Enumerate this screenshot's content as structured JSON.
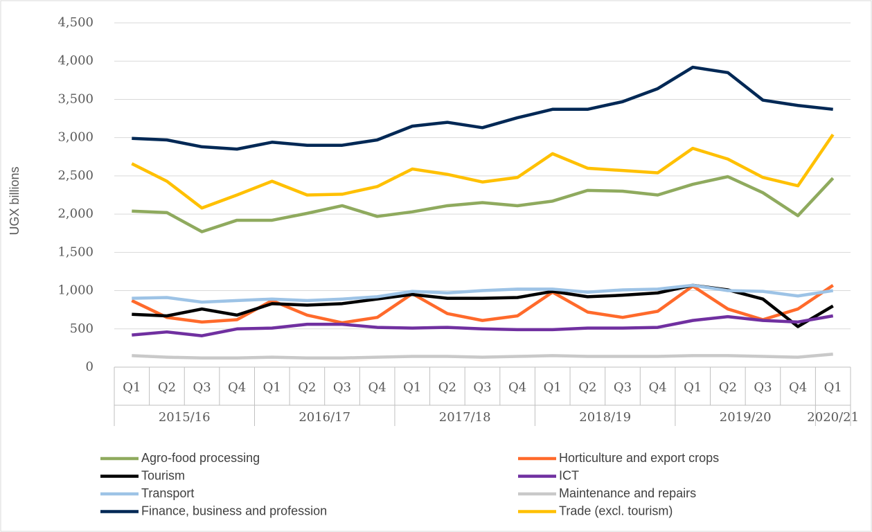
{
  "chart_data": {
    "type": "line",
    "y_label": "UGX billions",
    "category_groups": [
      {
        "label": "2015/16",
        "categories": [
          "Q1",
          "Q2",
          "Q3",
          "Q4"
        ]
      },
      {
        "label": "2016/17",
        "categories": [
          "Q1",
          "Q2",
          "Q3",
          "Q4"
        ]
      },
      {
        "label": "2017/18",
        "categories": [
          "Q1",
          "Q2",
          "Q3",
          "Q4"
        ]
      },
      {
        "label": "2018/19",
        "categories": [
          "Q1",
          "Q2",
          "Q3",
          "Q4"
        ]
      },
      {
        "label": "2019/20",
        "categories": [
          "Q1",
          "Q2",
          "Q3",
          "Q4"
        ]
      },
      {
        "label": "2020/21",
        "categories": [
          "Q1"
        ]
      }
    ],
    "series": [
      {
        "name": "Agro-food processing",
        "color": "#8faa5e",
        "values": [
          2040,
          2020,
          1770,
          1920,
          1920,
          2010,
          2110,
          1970,
          2030,
          2110,
          2150,
          2110,
          2170,
          2310,
          2300,
          2250,
          2390,
          2490,
          2280,
          1980,
          2470
        ]
      },
      {
        "name": "Horticulture and export crops",
        "color": "#ff6a2b",
        "values": [
          870,
          650,
          590,
          620,
          870,
          680,
          580,
          650,
          960,
          700,
          610,
          670,
          980,
          720,
          650,
          730,
          1060,
          760,
          620,
          760,
          1070
        ]
      },
      {
        "name": "Tourism",
        "color": "#000000",
        "values": [
          690,
          670,
          760,
          680,
          830,
          810,
          830,
          890,
          950,
          900,
          900,
          910,
          990,
          920,
          940,
          970,
          1070,
          1010,
          890,
          530,
          800
        ]
      },
      {
        "name": "ICT",
        "color": "#7030a0",
        "values": [
          420,
          460,
          410,
          500,
          510,
          560,
          560,
          520,
          510,
          520,
          500,
          490,
          490,
          510,
          510,
          520,
          610,
          660,
          610,
          590,
          670
        ]
      },
      {
        "name": "Transport",
        "color": "#9dc3e6",
        "values": [
          900,
          910,
          850,
          870,
          890,
          870,
          890,
          920,
          990,
          970,
          1000,
          1020,
          1020,
          980,
          1010,
          1020,
          1070,
          1000,
          990,
          930,
          1000
        ]
      },
      {
        "name": "Maintenance and repairs",
        "color": "#c9c9c9",
        "values": [
          150,
          130,
          120,
          120,
          130,
          120,
          120,
          130,
          140,
          140,
          130,
          140,
          150,
          140,
          140,
          140,
          150,
          150,
          140,
          130,
          170
        ]
      },
      {
        "name": "Finance, business and profession",
        "color": "#002855",
        "values": [
          2990,
          2970,
          2880,
          2850,
          2940,
          2900,
          2900,
          2970,
          3150,
          3200,
          3130,
          3260,
          3370,
          3370,
          3470,
          3640,
          3920,
          3850,
          3490,
          3420,
          3370
        ]
      },
      {
        "name": "Trade (excl. tourism)",
        "color": "#ffc000",
        "values": [
          2660,
          2430,
          2080,
          2250,
          2430,
          2250,
          2260,
          2360,
          2590,
          2520,
          2420,
          2480,
          2790,
          2600,
          2570,
          2540,
          2860,
          2720,
          2480,
          2370,
          3040
        ]
      }
    ],
    "ylim": [
      0,
      4500
    ],
    "yticks": [
      0,
      500,
      {
        "value": 1000,
        "label": "1,000"
      },
      {
        "value": 1500,
        "label": "1,500"
      },
      {
        "value": 2000,
        "label": "2,000"
      },
      {
        "value": 2500,
        "label": "2,500"
      },
      {
        "value": 3000,
        "label": "3,000"
      },
      {
        "value": 3500,
        "label": "3,500"
      },
      {
        "value": 4000,
        "label": "4,000"
      },
      {
        "value": 4500,
        "label": "4,500"
      }
    ],
    "grid": true,
    "legend": "bottom"
  }
}
